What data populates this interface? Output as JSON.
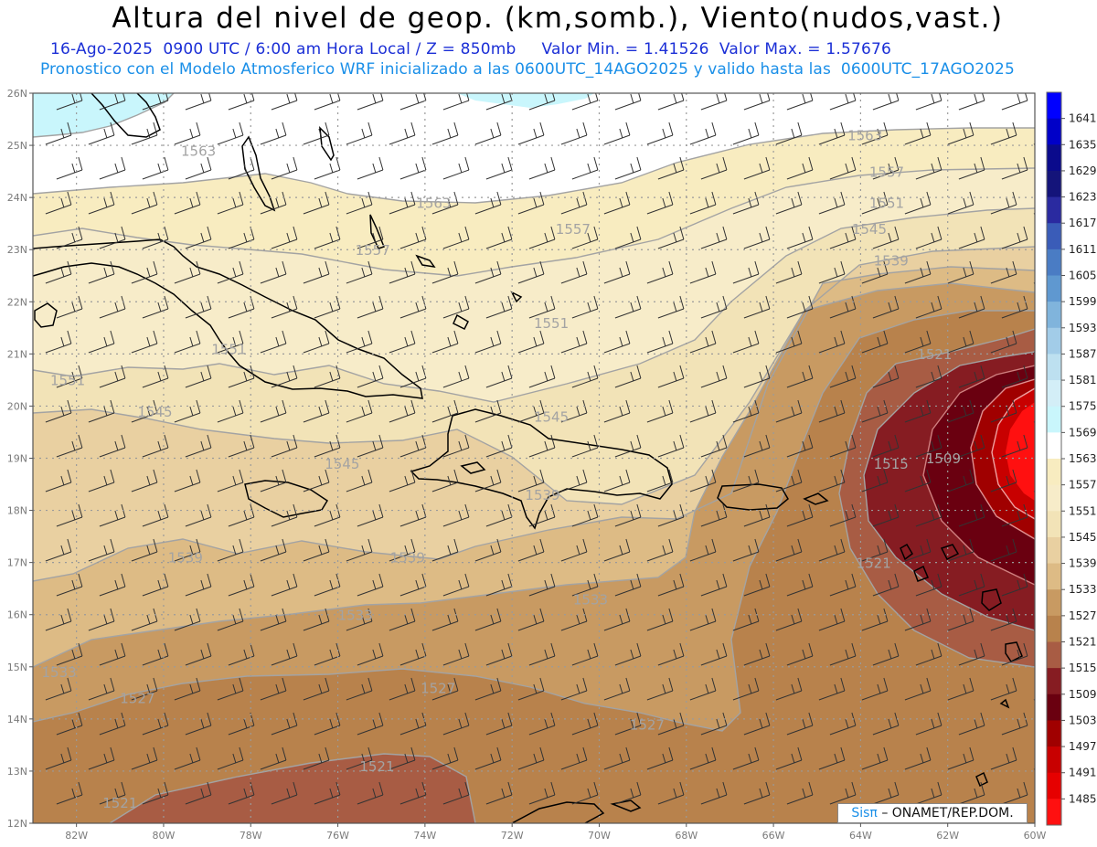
{
  "header": {
    "title": "Altura del nivel de geop. (km,somb.), Viento(nudos,vast.)",
    "subtitle1": "16-Ago-2025  0900 UTC / 6:00 am Hora Local / Z = 850mb     Valor Min. = 1.41526  Valor Max. = 1.57676",
    "subtitle2": "Pronostico con el Modelo Atmosferico WRF inicializado a las 0600UTC_14AGO2025 y valido hasta las  0600UTC_17AGO2025"
  },
  "map": {
    "lon_range": [
      -83,
      -60
    ],
    "lat_range": [
      12,
      26
    ],
    "lon_ticks": [
      "82W",
      "80W",
      "78W",
      "76W",
      "74W",
      "72W",
      "70W",
      "68W",
      "66W",
      "64W",
      "62W",
      "60W"
    ],
    "lat_ticks": [
      "12N",
      "13N",
      "14N",
      "15N",
      "16N",
      "17N",
      "18N",
      "19N",
      "20N",
      "21N",
      "22N",
      "23N",
      "24N",
      "25N",
      "26N"
    ],
    "contour_labels": [
      {
        "text": "1563",
        "lon": -79.2,
        "lat": 24.8
      },
      {
        "text": "1563",
        "lon": -73.8,
        "lat": 23.8
      },
      {
        "text": "1563",
        "lon": -63.9,
        "lat": 25.1
      },
      {
        "text": "1557",
        "lon": -63.4,
        "lat": 24.4
      },
      {
        "text": "1551",
        "lon": -63.4,
        "lat": 23.8
      },
      {
        "text": "1545",
        "lon": -63.8,
        "lat": 23.3
      },
      {
        "text": "1539",
        "lon": -63.3,
        "lat": 22.7
      },
      {
        "text": "1557",
        "lon": -70.6,
        "lat": 23.3
      },
      {
        "text": "1557",
        "lon": -75.2,
        "lat": 22.9
      },
      {
        "text": "1551",
        "lon": -71.1,
        "lat": 21.5
      },
      {
        "text": "1551",
        "lon": -78.5,
        "lat": 21.0
      },
      {
        "text": "1551",
        "lon": -82.2,
        "lat": 20.4
      },
      {
        "text": "1545",
        "lon": -80.2,
        "lat": 19.8
      },
      {
        "text": "1545",
        "lon": -75.9,
        "lat": 18.8
      },
      {
        "text": "1545",
        "lon": -71.1,
        "lat": 19.7
      },
      {
        "text": "1539",
        "lon": -71.3,
        "lat": 18.2
      },
      {
        "text": "1539",
        "lon": -79.5,
        "lat": 17.0
      },
      {
        "text": "1539",
        "lon": -74.4,
        "lat": 17.0
      },
      {
        "text": "1533",
        "lon": -70.2,
        "lat": 16.2
      },
      {
        "text": "1533",
        "lon": -75.6,
        "lat": 15.9
      },
      {
        "text": "1533",
        "lon": -82.4,
        "lat": 14.8
      },
      {
        "text": "1527",
        "lon": -80.6,
        "lat": 14.3
      },
      {
        "text": "1527",
        "lon": -73.7,
        "lat": 14.5
      },
      {
        "text": "1527",
        "lon": -68.9,
        "lat": 13.8
      },
      {
        "text": "1521",
        "lon": -75.1,
        "lat": 13.0
      },
      {
        "text": "1521",
        "lon": -81.0,
        "lat": 12.3
      },
      {
        "text": "1521",
        "lon": -63.7,
        "lat": 16.9
      },
      {
        "text": "1521",
        "lon": -62.3,
        "lat": 20.9
      },
      {
        "text": "1515",
        "lon": -63.3,
        "lat": 18.8
      },
      {
        "text": "1509",
        "lon": -62.1,
        "lat": 18.9
      }
    ]
  },
  "colorbar": {
    "levels": [
      "1641",
      "1635",
      "1629",
      "1623",
      "1617",
      "1611",
      "1605",
      "1599",
      "1593",
      "1587",
      "1581",
      "1575",
      "1569",
      "1563",
      "1557",
      "1551",
      "1545",
      "1539",
      "1533",
      "1527",
      "1521",
      "1515",
      "1509",
      "1503",
      "1497",
      "1491",
      "1485"
    ],
    "colors": [
      "#0000ff",
      "#0000c8",
      "#0a0a8c",
      "#14147a",
      "#2a2aa0",
      "#3a5cb8",
      "#4a7cc4",
      "#5f98d0",
      "#80b4dc",
      "#a2cce8",
      "#bde0f0",
      "#d3eef7",
      "#c9f6fc",
      "#ffffff",
      "#f8ecc0",
      "#f7ecc9",
      "#f2e3b7",
      "#e9d0a1",
      "#ddbb85",
      "#c89a62",
      "#b8824c",
      "#a85c44",
      "#861c22",
      "#6a0010",
      "#a00000",
      "#c80000",
      "#e60000",
      "#ff1010"
    ]
  },
  "credit": {
    "sis": "Sisπ",
    "org": "– ONAMET/REP.DOM."
  }
}
